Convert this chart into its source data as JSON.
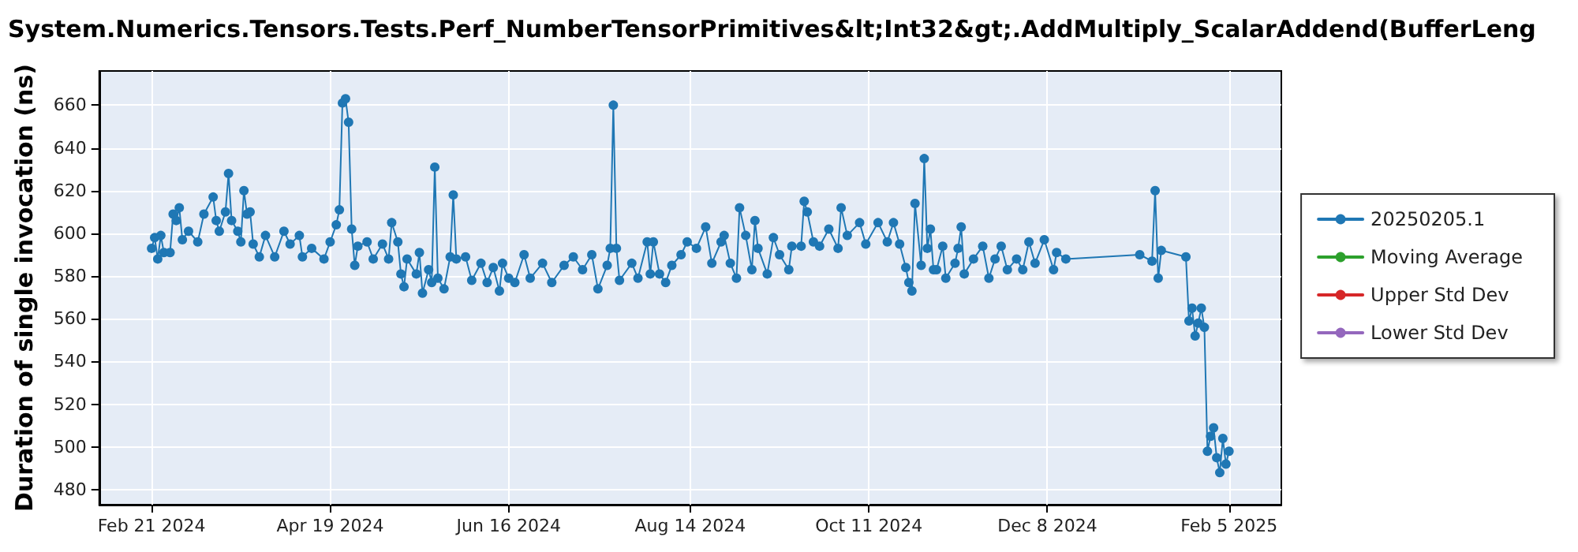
{
  "chart_data": {
    "type": "line",
    "title": "System.Numerics.Tensors.Tests.Perf_NumberTensorPrimitives&lt;Int32&gt;.AddMultiply_ScalarAddend(BufferLeng",
    "ylabel": "Duration of single invocation (ns)",
    "xlim": [
      "2024-02-04",
      "2025-02-22"
    ],
    "xticks": [
      {
        "value": "2024-02-21",
        "label": "Feb 21 2024"
      },
      {
        "value": "2024-04-19",
        "label": "Apr 19 2024"
      },
      {
        "value": "2024-06-16",
        "label": "Jun 16 2024"
      },
      {
        "value": "2024-08-14",
        "label": "Aug 14 2024"
      },
      {
        "value": "2024-10-11",
        "label": "Oct 11 2024"
      },
      {
        "value": "2024-12-08",
        "label": "Dec 8 2024"
      },
      {
        "value": "2025-02-05",
        "label": "Feb 5 2025"
      }
    ],
    "ylim": [
      473,
      676
    ],
    "yticks": [
      480,
      500,
      520,
      540,
      560,
      580,
      600,
      620,
      640,
      660
    ],
    "grid": true,
    "legend": "right",
    "marker": "circle",
    "line_style": "solid",
    "series": [
      {
        "name": "20250205.1",
        "color": "#1f77b4",
        "x": [
          "2024-02-21",
          "2024-02-22",
          "2024-02-23",
          "2024-02-24",
          "2024-02-25",
          "2024-02-27",
          "2024-02-28",
          "2024-02-29",
          "2024-03-01",
          "2024-03-02",
          "2024-03-04",
          "2024-03-07",
          "2024-03-09",
          "2024-03-12",
          "2024-03-13",
          "2024-03-14",
          "2024-03-16",
          "2024-03-17",
          "2024-03-18",
          "2024-03-20",
          "2024-03-21",
          "2024-03-22",
          "2024-03-23",
          "2024-03-24",
          "2024-03-25",
          "2024-03-27",
          "2024-03-29",
          "2024-04-01",
          "2024-04-04",
          "2024-04-06",
          "2024-04-09",
          "2024-04-10",
          "2024-04-13",
          "2024-04-17",
          "2024-04-19",
          "2024-04-21",
          "2024-04-22",
          "2024-04-23",
          "2024-04-24",
          "2024-04-25",
          "2024-04-26",
          "2024-04-27",
          "2024-04-28",
          "2024-05-01",
          "2024-05-03",
          "2024-05-06",
          "2024-05-08",
          "2024-05-09",
          "2024-05-11",
          "2024-05-12",
          "2024-05-13",
          "2024-05-14",
          "2024-05-17",
          "2024-05-18",
          "2024-05-19",
          "2024-05-21",
          "2024-05-22",
          "2024-05-23",
          "2024-05-24",
          "2024-05-26",
          "2024-05-28",
          "2024-05-29",
          "2024-05-30",
          "2024-06-02",
          "2024-06-04",
          "2024-06-07",
          "2024-06-09",
          "2024-06-11",
          "2024-06-13",
          "2024-06-14",
          "2024-06-16",
          "2024-06-18",
          "2024-06-21",
          "2024-06-23",
          "2024-06-27",
          "2024-06-30",
          "2024-07-04",
          "2024-07-07",
          "2024-07-10",
          "2024-07-13",
          "2024-07-15",
          "2024-07-18",
          "2024-07-19",
          "2024-07-20",
          "2024-07-21",
          "2024-07-22",
          "2024-07-26",
          "2024-07-28",
          "2024-07-31",
          "2024-08-01",
          "2024-08-02",
          "2024-08-04",
          "2024-08-06",
          "2024-08-08",
          "2024-08-11",
          "2024-08-13",
          "2024-08-16",
          "2024-08-19",
          "2024-08-21",
          "2024-08-24",
          "2024-08-25",
          "2024-08-27",
          "2024-08-29",
          "2024-08-30",
          "2024-09-01",
          "2024-09-03",
          "2024-09-04",
          "2024-09-05",
          "2024-09-08",
          "2024-09-10",
          "2024-09-12",
          "2024-09-15",
          "2024-09-16",
          "2024-09-19",
          "2024-09-20",
          "2024-09-21",
          "2024-09-23",
          "2024-09-25",
          "2024-09-28",
          "2024-10-01",
          "2024-10-02",
          "2024-10-04",
          "2024-10-08",
          "2024-10-10",
          "2024-10-14",
          "2024-10-17",
          "2024-10-19",
          "2024-10-21",
          "2024-10-23",
          "2024-10-24",
          "2024-10-25",
          "2024-10-26",
          "2024-10-28",
          "2024-10-29",
          "2024-10-30",
          "2024-10-31",
          "2024-11-01",
          "2024-11-02",
          "2024-11-04",
          "2024-11-05",
          "2024-11-08",
          "2024-11-09",
          "2024-11-10",
          "2024-11-11",
          "2024-11-14",
          "2024-11-17",
          "2024-11-19",
          "2024-11-21",
          "2024-11-23",
          "2024-11-25",
          "2024-11-28",
          "2024-11-30",
          "2024-12-02",
          "2024-12-04",
          "2024-12-07",
          "2024-12-10",
          "2024-12-11",
          "2024-12-14",
          "2025-01-07",
          "2025-01-11",
          "2025-01-12",
          "2025-01-13",
          "2025-01-14",
          "2025-01-22",
          "2025-01-23",
          "2025-01-24",
          "2025-01-25",
          "2025-01-26",
          "2025-01-27",
          "2025-01-28",
          "2025-01-29",
          "2025-01-30",
          "2025-01-31",
          "2025-02-01",
          "2025-02-02",
          "2025-02-03",
          "2025-02-04",
          "2025-02-05"
        ],
        "values": [
          593,
          598,
          588,
          599,
          591,
          591,
          609,
          606,
          612,
          597,
          601,
          596,
          609,
          617,
          606,
          601,
          610,
          628,
          606,
          601,
          596,
          620,
          609,
          610,
          595,
          589,
          599,
          589,
          601,
          595,
          599,
          589,
          593,
          588,
          596,
          604,
          611,
          661,
          663,
          652,
          602,
          585,
          594,
          596,
          588,
          595,
          588,
          605,
          596,
          581,
          575,
          588,
          581,
          591,
          572,
          583,
          577,
          631,
          579,
          574,
          589,
          618,
          588,
          589,
          578,
          586,
          577,
          584,
          573,
          586,
          579,
          577,
          590,
          579,
          586,
          577,
          585,
          589,
          583,
          590,
          574,
          585,
          593,
          660,
          593,
          578,
          586,
          579,
          596,
          581,
          596,
          581,
          577,
          585,
          590,
          596,
          593,
          603,
          586,
          596,
          599,
          586,
          579,
          612,
          599,
          583,
          606,
          593,
          581,
          598,
          590,
          583,
          594,
          594,
          615,
          610,
          596,
          594,
          602,
          593,
          612,
          599,
          605,
          595,
          605,
          596,
          605,
          595,
          584,
          577,
          573,
          614,
          585,
          635,
          593,
          602,
          583,
          583,
          594,
          579,
          586,
          593,
          603,
          581,
          588,
          594,
          579,
          588,
          594,
          583,
          588,
          583,
          596,
          586,
          597,
          583,
          591,
          588,
          590,
          587,
          620,
          579,
          592,
          589,
          559,
          565,
          552,
          558,
          565,
          556,
          498,
          505,
          509,
          495,
          488,
          504,
          492,
          498
        ]
      },
      {
        "name": "Moving Average",
        "color": "#2ca02c"
      },
      {
        "name": "Upper Std Dev",
        "color": "#d62728"
      },
      {
        "name": "Lower Std Dev",
        "color": "#9467bd"
      }
    ]
  }
}
